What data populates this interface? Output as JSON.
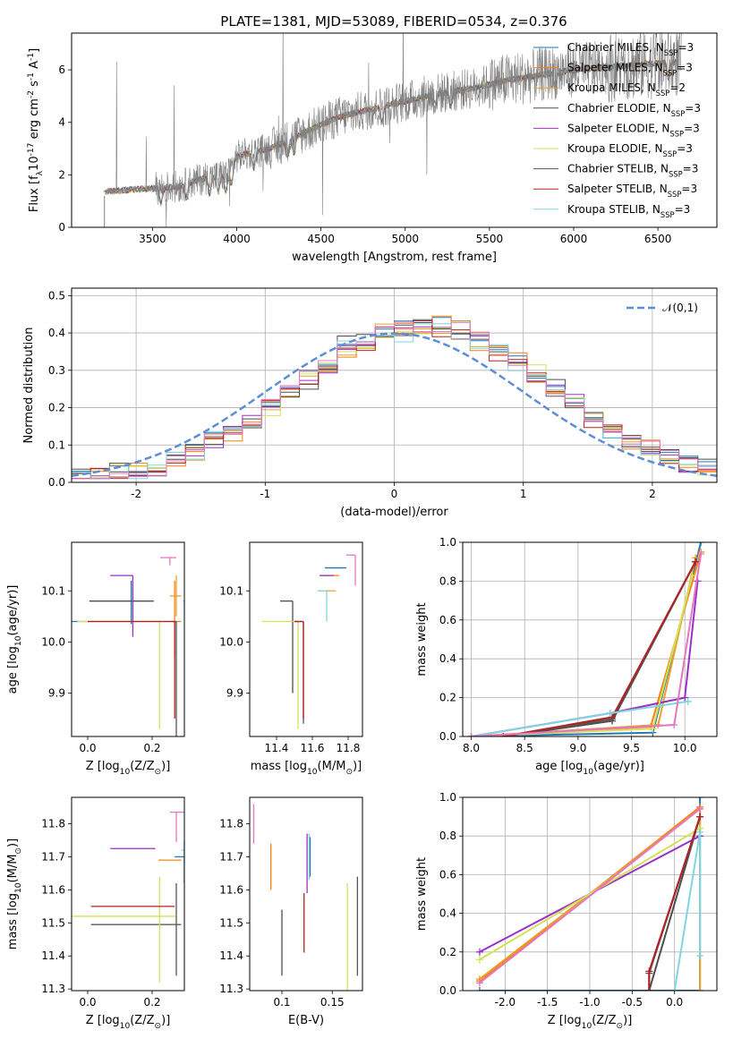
{
  "figure": {
    "title": "PLATE=1381, MJD=53089, FIBERID=0534, z=0.376"
  },
  "colors": {
    "Chabrier MILES": "#1f77b4",
    "Salpeter MILES": "#ff7f0e",
    "Kroupa MILES": "#e8a02a",
    "Chabrier ELODIE": "#4d4d4d",
    "Salpeter ELODIE": "#9b30c8",
    "Kroupa ELODIE": "#d4e157",
    "Chabrier STELIB": "#555555",
    "Salpeter STELIB": "#b22222",
    "Kroupa STELIB": "#7fd6e0",
    "Pink": "#e377c2",
    "normal_fit": "#5b8ed6"
  },
  "chart_data": [
    {
      "id": "spectrum",
      "type": "line",
      "title": "PLATE=1381, MJD=53089, FIBERID=0534, z=0.376",
      "xlabel": "wavelength [Angstrom, rest frame]",
      "ylabel": "Flux [f$_\\lambda$10$^{-17}$ erg cm$^{-2}$ s$^{-1}$ A$^{-1}$]",
      "xlim": [
        3020,
        6850
      ],
      "ylim": [
        0,
        7.4
      ],
      "xticks": [
        3500,
        4000,
        4500,
        5000,
        5500,
        6000,
        6500
      ],
      "yticks": [
        0,
        2,
        4,
        6
      ],
      "legend_position": "top-right",
      "continuum_anchor_x": [
        3220,
        3400,
        3560,
        3650,
        3800,
        3950,
        4000,
        4200,
        4400,
        4600,
        4800,
        5000,
        5200,
        5400,
        5600,
        5800,
        6000,
        6200,
        6400,
        6600
      ],
      "continuum_anchor_y": [
        1.35,
        1.45,
        1.5,
        1.55,
        1.85,
        2.0,
        2.7,
        3.0,
        3.6,
        4.2,
        4.5,
        4.8,
        5.1,
        5.3,
        5.6,
        5.8,
        6.0,
        6.1,
        6.2,
        6.3
      ],
      "series": [
        {
          "name": "Chabrier MILES, N$_{SSP}$=3"
        },
        {
          "name": "Salpeter MILES, N$_{SSP}$=3"
        },
        {
          "name": "Kroupa MILES, N$_{SSP}$=2"
        },
        {
          "name": "Chabrier ELODIE, N$_{SSP}$=3"
        },
        {
          "name": "Salpeter ELODIE, N$_{SSP}$=3"
        },
        {
          "name": "Kroupa ELODIE, N$_{SSP}$=3"
        },
        {
          "name": "Chabrier STELIB, N$_{SSP}$=3"
        },
        {
          "name": "Salpeter STELIB, N$_{SSP}$=3"
        },
        {
          "name": "Kroupa STELIB, N$_{SSP}$=3"
        }
      ]
    },
    {
      "id": "residuals",
      "type": "step",
      "xlabel": "(data-model)/error",
      "ylabel": "Normed distribution",
      "xlim": [
        -2.5,
        2.5
      ],
      "ylim": [
        0,
        0.52
      ],
      "xticks": [
        -2,
        -1,
        0,
        1,
        2
      ],
      "yticks": [
        0.0,
        0.1,
        0.2,
        0.3,
        0.4,
        0.5
      ],
      "grid": true,
      "legend": "$\\mathcal{N}(0,1)$",
      "legend_position": "top-right",
      "histogram_shape": [
        0.02,
        0.03,
        0.03,
        0.04,
        0.06,
        0.08,
        0.11,
        0.13,
        0.16,
        0.2,
        0.25,
        0.28,
        0.32,
        0.36,
        0.38,
        0.4,
        0.41,
        0.42,
        0.42,
        0.41,
        0.38,
        0.35,
        0.32,
        0.29,
        0.25,
        0.21,
        0.17,
        0.14,
        0.11,
        0.09,
        0.07,
        0.05,
        0.04
      ],
      "series_offsets": [
        0.0,
        0.025,
        -0.015,
        0.035,
        -0.03,
        0.02,
        0.01,
        -0.02,
        0.04
      ]
    },
    {
      "id": "age_vs_Z",
      "type": "errorbar",
      "xlabel": "Z [log$_{10}$($Z/Z_\\odot$)]",
      "ylabel": "age  [log$_{10}$($age/yr$)]",
      "xlim": [
        -0.05,
        0.3
      ],
      "ylim": [
        9.815,
        10.195
      ],
      "xticks": [
        0.0,
        0.2
      ],
      "yticks": [
        9.9,
        10.0,
        10.1
      ],
      "points": [
        {
          "x": 0.135,
          "y": 10.04,
          "xerr": [
            0.205,
            0.13
          ],
          "yerr": [
            0.005,
            0.08
          ],
          "color": "Chabrier MILES"
        },
        {
          "x": 0.27,
          "y": 10.04,
          "xerr": [
            0.01,
            0.02
          ],
          "yerr": [
            0.07,
            0.08
          ],
          "color": "Salpeter MILES"
        },
        {
          "x": 0.275,
          "y": 10.09,
          "xerr": [
            0.02,
            0.015
          ],
          "yerr": [
            0.04,
            0.04
          ],
          "color": "Kroupa MILES"
        },
        {
          "x": 0.105,
          "y": 10.08,
          "xerr": [
            0.1,
            0.1
          ],
          "yerr": [
            0.0,
            0.0
          ],
          "color": "Chabrier ELODIE"
        },
        {
          "x": 0.14,
          "y": 10.13,
          "xerr": [
            0.07,
            0.0
          ],
          "yerr": [
            0.12,
            0.0
          ],
          "color": "Salpeter ELODIE"
        },
        {
          "x": 0.223,
          "y": 10.04,
          "xerr": [
            0.255,
            0.0
          ],
          "yerr": [
            0.21,
            0.0
          ],
          "color": "Kroupa ELODIE"
        },
        {
          "x": 0.275,
          "y": 10.04,
          "xerr": [
            0.01,
            0.0
          ],
          "yerr": [
            0.25,
            0.0
          ],
          "color": "Chabrier STELIB"
        },
        {
          "x": 0.27,
          "y": 10.04,
          "xerr": [
            0.27,
            0.0
          ],
          "yerr": [
            0.19,
            0.0
          ],
          "color": "Salpeter STELIB"
        },
        {
          "x": 0.3,
          "y": 10.08,
          "xerr": [
            0.005,
            0.0
          ],
          "yerr": [
            0.04,
            0.0
          ],
          "color": "Kroupa STELIB"
        },
        {
          "x": 0.255,
          "y": 10.165,
          "xerr": [
            0.03,
            0.02
          ],
          "yerr": [
            0.015,
            0.0
          ],
          "color": "Pink"
        }
      ]
    },
    {
      "id": "age_vs_mass",
      "type": "errorbar",
      "xlabel": "mass [log$_{10}$($M/M_\\odot$)]",
      "xlim": [
        11.25,
        11.88
      ],
      "ylim": [
        9.815,
        10.195
      ],
      "xticks": [
        11.4,
        11.6,
        11.8
      ],
      "yticks": [
        9.9,
        10.0,
        10.1
      ],
      "points": [
        {
          "x": 11.73,
          "y": 10.145,
          "xerr": [
            0.06,
            0.06
          ],
          "yerr": [
            0.0,
            0.0
          ],
          "color": "Chabrier MILES"
        },
        {
          "x": 11.7,
          "y": 10.13,
          "xerr": [
            0.05,
            0.05
          ],
          "yerr": [
            0.0,
            0.0
          ],
          "color": "Salpeter MILES"
        },
        {
          "x": 11.68,
          "y": 10.1,
          "xerr": [
            0.05,
            0.05
          ],
          "yerr": [
            0.0,
            0.0
          ],
          "color": "Kroupa MILES"
        },
        {
          "x": 11.49,
          "y": 10.08,
          "xerr": [
            0.07,
            0.0
          ],
          "yerr": [
            0.18,
            0.0
          ],
          "color": "Chabrier ELODIE"
        },
        {
          "x": 11.72,
          "y": 10.13,
          "xerr": [
            0.08,
            0.0
          ],
          "yerr": [
            0.0,
            0.0
          ],
          "color": "Salpeter ELODIE"
        },
        {
          "x": 11.52,
          "y": 10.04,
          "xerr": [
            0.2,
            0.0
          ],
          "yerr": [
            0.21,
            0.0
          ],
          "color": "Kroupa ELODIE"
        },
        {
          "x": 11.55,
          "y": 10.04,
          "xerr": [
            0.05,
            0.0
          ],
          "yerr": [
            0.2,
            0.0
          ],
          "color": "Chabrier STELIB"
        },
        {
          "x": 11.55,
          "y": 10.04,
          "xerr": [
            0.05,
            0.0
          ],
          "yerr": [
            0.19,
            0.0
          ],
          "color": "Salpeter STELIB"
        },
        {
          "x": 11.68,
          "y": 10.1,
          "xerr": [
            0.05,
            0.0
          ],
          "yerr": [
            0.06,
            0.0
          ],
          "color": "Kroupa STELIB"
        },
        {
          "x": 11.84,
          "y": 10.17,
          "xerr": [
            0.05,
            0.0
          ],
          "yerr": [
            0.06,
            0.0
          ],
          "color": "Pink"
        }
      ]
    },
    {
      "id": "mass_weight_vs_age",
      "type": "line",
      "xlabel": "age  [log$_{10}$($age/yr$)]",
      "ylabel": "mass weight",
      "xlim": [
        7.92,
        10.3
      ],
      "ylim": [
        0,
        1
      ],
      "xticks": [
        8.0,
        8.5,
        9.0,
        9.5,
        10.0
      ],
      "yticks": [
        0.0,
        0.2,
        0.4,
        0.6,
        0.8,
        1.0
      ],
      "grid": true,
      "series": [
        {
          "name": "Chabrier MILES",
          "x": [
            8.0,
            9.7,
            10.15
          ],
          "y": [
            0.0,
            0.02,
            1.0
          ]
        },
        {
          "name": "Salpeter MILES",
          "x": [
            8.0,
            9.68,
            10.15
          ],
          "y": [
            0.0,
            0.05,
            0.95
          ]
        },
        {
          "name": "Kroupa MILES",
          "x": [
            8.0,
            9.75,
            10.1
          ],
          "y": [
            0.0,
            0.06,
            0.92
          ]
        },
        {
          "name": "Chabrier ELODIE",
          "x": [
            8.3,
            9.32,
            10.1
          ],
          "y": [
            0.0,
            0.08,
            0.9
          ]
        },
        {
          "name": "Salpeter ELODIE",
          "x": [
            8.0,
            9.3,
            10.0,
            10.12
          ],
          "y": [
            0.0,
            0.12,
            0.2,
            0.8
          ]
        },
        {
          "name": "Kroupa ELODIE",
          "x": [
            8.0,
            9.7,
            10.07
          ],
          "y": [
            0.0,
            0.04,
            0.83
          ]
        },
        {
          "name": "Chabrier STELIB",
          "x": [
            8.3,
            9.32,
            10.1
          ],
          "y": [
            0.0,
            0.09,
            0.9
          ]
        },
        {
          "name": "Salpeter STELIB",
          "x": [
            8.3,
            9.32,
            10.1
          ],
          "y": [
            0.0,
            0.1,
            0.9
          ]
        },
        {
          "name": "Kroupa STELIB",
          "x": [
            8.0,
            9.3,
            10.03
          ],
          "y": [
            0.0,
            0.12,
            0.18
          ]
        },
        {
          "name": "Pink",
          "x": [
            8.0,
            9.9,
            10.15
          ],
          "y": [
            0.0,
            0.06,
            0.94
          ]
        }
      ]
    },
    {
      "id": "mass_vs_Z",
      "type": "errorbar",
      "xlabel": "Z [log$_{10}$($Z/Z_\\odot$)]",
      "ylabel": "mass [log$_{10}$($M/M_\\odot$)]",
      "xlim": [
        -0.05,
        0.3
      ],
      "ylim": [
        11.295,
        11.88
      ],
      "xticks": [
        0.0,
        0.2
      ],
      "yticks": [
        11.3,
        11.4,
        11.5,
        11.6,
        11.7,
        11.8
      ],
      "points": [
        {
          "x": 0.3,
          "y": 11.7,
          "xerr": [
            0.03,
            0.0
          ],
          "yerr": [
            0.08,
            0.05
          ],
          "color": "Chabrier MILES"
        },
        {
          "x": 0.27,
          "y": 11.69,
          "xerr": [
            0.05,
            0.02
          ],
          "yerr": [
            0.0,
            0.0
          ],
          "color": "Salpeter MILES"
        },
        {
          "x": 0.27,
          "y": 11.69,
          "xerr": [
            0.04,
            0.01
          ],
          "yerr": [
            0.0,
            0.0
          ],
          "color": "Kroupa MILES"
        },
        {
          "x": 0.18,
          "y": 11.495,
          "xerr": [
            0.17,
            0.11
          ],
          "yerr": [
            0.0,
            0.0
          ],
          "color": "Chabrier ELODIE"
        },
        {
          "x": 0.15,
          "y": 11.725,
          "xerr": [
            0.08,
            0.06
          ],
          "yerr": [
            0.0,
            0.0
          ],
          "color": "Salpeter ELODIE"
        },
        {
          "x": 0.223,
          "y": 11.52,
          "xerr": [
            0.27,
            0.05
          ],
          "yerr": [
            0.2,
            0.12
          ],
          "color": "Kroupa ELODIE"
        },
        {
          "x": 0.275,
          "y": 11.49,
          "xerr": [
            0.0,
            0.0
          ],
          "yerr": [
            0.15,
            0.13
          ],
          "color": "Chabrier STELIB"
        },
        {
          "x": 0.135,
          "y": 11.55,
          "xerr": [
            0.125,
            0.135
          ],
          "yerr": [
            0.0,
            0.0
          ],
          "color": "Salpeter STELIB"
        },
        {
          "x": 0.3,
          "y": 11.72,
          "xerr": [
            0.01,
            0.0
          ],
          "yerr": [
            0.1,
            0.0
          ],
          "color": "Kroupa STELIB"
        },
        {
          "x": 0.275,
          "y": 11.835,
          "xerr": [
            0.02,
            0.03
          ],
          "yerr": [
            0.09,
            0.0
          ],
          "color": "Pink"
        }
      ]
    },
    {
      "id": "mass_vs_EBV",
      "type": "errorbar",
      "xlabel": "E(B-V)",
      "xlim": [
        0.068,
        0.18
      ],
      "ylim": [
        11.295,
        11.88
      ],
      "xticks": [
        0.1,
        0.15
      ],
      "yticks": [
        11.3,
        11.4,
        11.5,
        11.6,
        11.7,
        11.8
      ],
      "points": [
        {
          "x": 0.128,
          "y": 11.7,
          "xerr": [
            0.0,
            0.0
          ],
          "yerr": [
            0.06,
            0.06
          ],
          "color": "Chabrier MILES"
        },
        {
          "x": 0.089,
          "y": 11.67,
          "xerr": [
            0.0,
            0.0
          ],
          "yerr": [
            0.07,
            0.07
          ],
          "color": "Salpeter MILES"
        },
        {
          "x": 0.1,
          "y": 11.44,
          "xerr": [
            0.0,
            0.0
          ],
          "yerr": [
            0.1,
            0.1
          ],
          "color": "Chabrier ELODIE"
        },
        {
          "x": 0.125,
          "y": 11.68,
          "xerr": [
            0.0,
            0.0
          ],
          "yerr": [
            0.09,
            0.09
          ],
          "color": "Salpeter ELODIE"
        },
        {
          "x": 0.165,
          "y": 11.45,
          "xerr": [
            0.0,
            0.0
          ],
          "yerr": [
            0.17,
            0.17
          ],
          "color": "Kroupa ELODIE"
        },
        {
          "x": 0.175,
          "y": 11.49,
          "xerr": [
            0.0,
            0.0
          ],
          "yerr": [
            0.15,
            0.15
          ],
          "color": "Chabrier STELIB"
        },
        {
          "x": 0.122,
          "y": 11.5,
          "xerr": [
            0.0,
            0.0
          ],
          "yerr": [
            0.09,
            0.09
          ],
          "color": "Salpeter STELIB"
        },
        {
          "x": 0.127,
          "y": 11.7,
          "xerr": [
            0.0,
            0.0
          ],
          "yerr": [
            0.07,
            0.07
          ],
          "color": "Kroupa STELIB"
        },
        {
          "x": 0.072,
          "y": 11.8,
          "xerr": [
            0.0,
            0.0
          ],
          "yerr": [
            0.06,
            0.06
          ],
          "color": "Pink"
        }
      ]
    },
    {
      "id": "mass_weight_vs_Z",
      "type": "line",
      "xlabel": "Z [log$_{10}$($Z/Z_\\odot$)]",
      "ylabel": "mass weight",
      "xlim": [
        -2.5,
        0.5
      ],
      "ylim": [
        0,
        1
      ],
      "xticks": [
        -2.0,
        -1.5,
        -1.0,
        -0.5,
        0.0
      ],
      "yticks": [
        0.0,
        0.2,
        0.4,
        0.6,
        0.8,
        1.0
      ],
      "grid": true,
      "series": [
        {
          "name": "Chabrier MILES",
          "x": [
            -2.3,
            0.3,
            0.3
          ],
          "y": [
            0.0,
            0.0,
            1.0
          ]
        },
        {
          "name": "Salpeter MILES",
          "x": [
            -2.3,
            0.3
          ],
          "y": [
            0.05,
            0.95
          ]
        },
        {
          "name": "Kroupa MILES",
          "x": [
            -2.3,
            0.3,
            0.3
          ],
          "y": [
            0.06,
            0.94,
            0.0
          ]
        },
        {
          "name": "Chabrier ELODIE",
          "x": [
            -0.3,
            0.3
          ],
          "y": [
            0.0,
            0.9
          ]
        },
        {
          "name": "Salpeter ELODIE",
          "x": [
            -2.3,
            0.3,
            0.3
          ],
          "y": [
            0.2,
            0.8,
            0.8
          ]
        },
        {
          "name": "Kroupa ELODIE",
          "x": [
            -2.3,
            0.3
          ],
          "y": [
            0.16,
            0.84
          ]
        },
        {
          "name": "Chabrier STELIB",
          "x": [
            -0.3,
            -0.3,
            0.3
          ],
          "y": [
            0.0,
            0.09,
            0.9
          ]
        },
        {
          "name": "Salpeter STELIB",
          "x": [
            -0.3,
            -0.3,
            0.3
          ],
          "y": [
            0.0,
            0.1,
            0.9
          ]
        },
        {
          "name": "Kroupa STELIB",
          "x": [
            0.0,
            0.3,
            0.3
          ],
          "y": [
            0.0,
            0.82,
            0.18
          ]
        },
        {
          "name": "Pink",
          "x": [
            -2.3,
            0.3
          ],
          "y": [
            0.04,
            0.94
          ]
        }
      ]
    }
  ]
}
